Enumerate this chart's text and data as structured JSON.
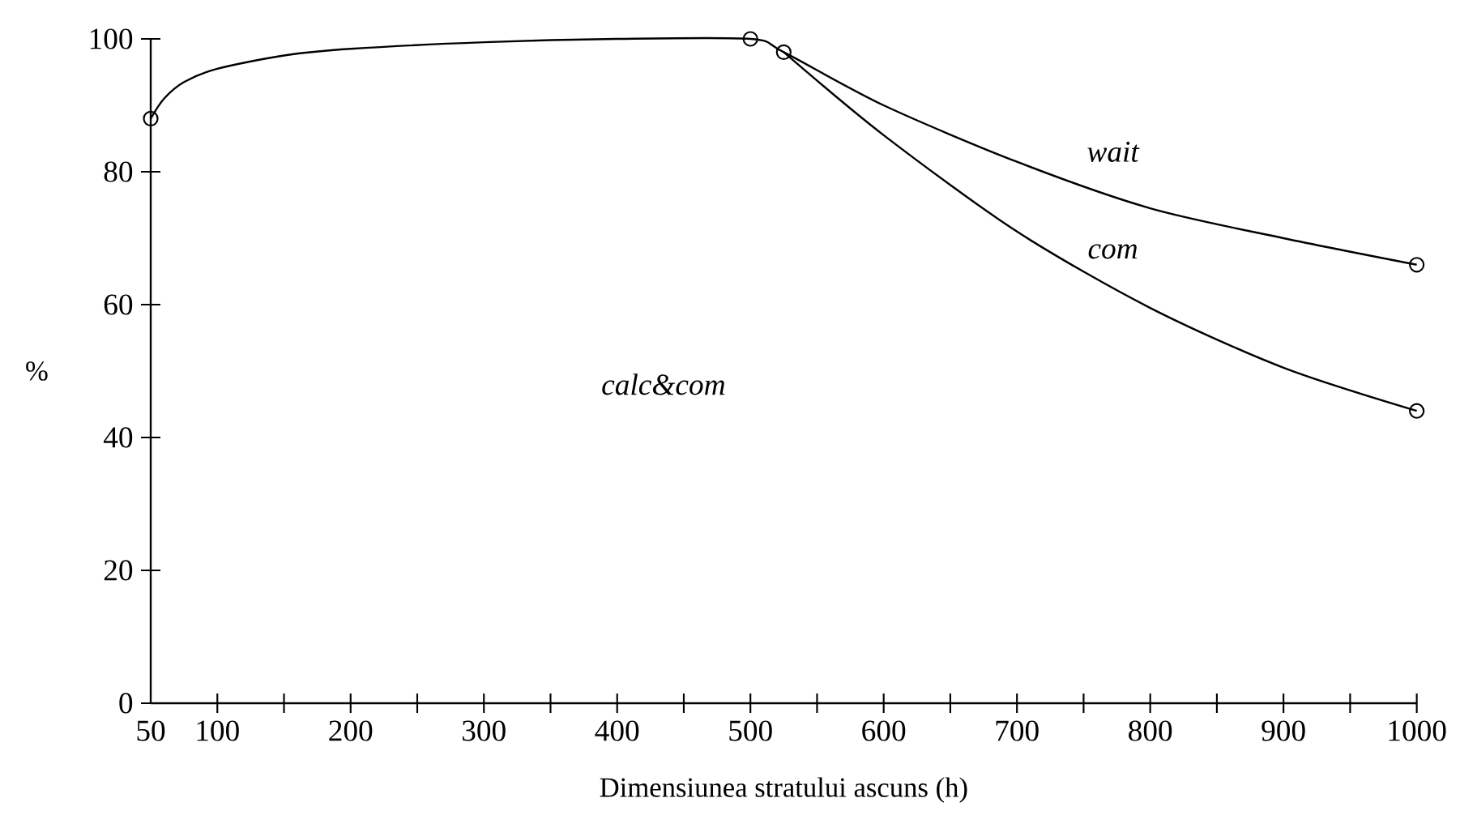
{
  "chart_data": {
    "type": "line",
    "xlabel": "Dimensiunea stratului ascuns (h)",
    "ylabel": "%",
    "xlim": [
      50,
      1000
    ],
    "ylim": [
      0,
      100
    ],
    "xticks": [
      50,
      100,
      {
        "value": 150,
        "label": null
      },
      200,
      {
        "value": 250,
        "label": null
      },
      300,
      {
        "value": 350,
        "label": null
      },
      400,
      {
        "value": 450,
        "label": null
      },
      500,
      {
        "value": 550,
        "label": null
      },
      600,
      {
        "value": 650,
        "label": null
      },
      700,
      {
        "value": 750,
        "label": null
      },
      800,
      {
        "value": 850,
        "label": null
      },
      900,
      {
        "value": 950,
        "label": null
      },
      1000
    ],
    "yticks": [
      0,
      20,
      40,
      60,
      80,
      100
    ],
    "series": [
      {
        "color": "#000000",
        "x": [
          50,
          60,
          75,
          100,
          150,
          200,
          300,
          400,
          500,
          525,
          600,
          700,
          800,
          900,
          1000
        ],
        "values": [
          88,
          91,
          93.5,
          95.5,
          97.5,
          98.5,
          99.5,
          100,
          100,
          98,
          90,
          81.5,
          74.5,
          70,
          66
        ]
      },
      {
        "color": "#000000",
        "x": [
          525,
          600,
          700,
          800,
          900,
          1000
        ],
        "values": [
          98,
          85.5,
          71,
          59.5,
          50.5,
          44
        ]
      },
      {
        "type": "scatter",
        "color": "#000000",
        "marker": "circle",
        "x": [
          50,
          500,
          525,
          1000,
          1000
        ],
        "values": [
          88,
          100,
          98,
          66,
          44
        ]
      }
    ],
    "annotations": [
      "wait",
      "com",
      "calc&com"
    ]
  }
}
